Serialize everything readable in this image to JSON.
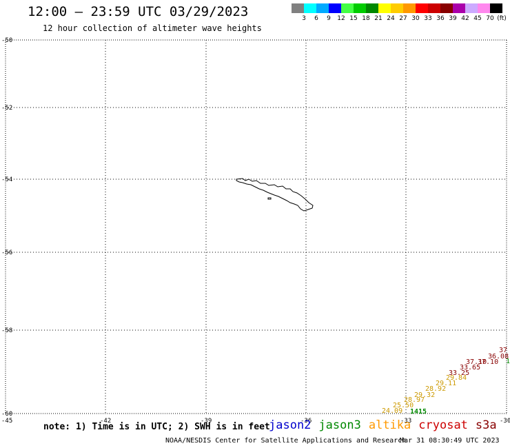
{
  "header": {
    "title": "12:00 – 23:59 UTC 03/29/2023",
    "subtitle": "12 hour collection of altimeter wave heights"
  },
  "legend": {
    "unit": "(ft)",
    "swatches": [
      {
        "color": "#808080",
        "label": "3"
      },
      {
        "color": "#00ffff",
        "label": "6"
      },
      {
        "color": "#00aaff",
        "label": "9"
      },
      {
        "color": "#0000ff",
        "label": "12"
      },
      {
        "color": "#44ff44",
        "label": "15"
      },
      {
        "color": "#00cc00",
        "label": "18"
      },
      {
        "color": "#008800",
        "label": "21"
      },
      {
        "color": "#ffff00",
        "label": "24"
      },
      {
        "color": "#ffcc00",
        "label": "27"
      },
      {
        "color": "#ff9900",
        "label": "30"
      },
      {
        "color": "#ff0000",
        "label": "33"
      },
      {
        "color": "#cc0000",
        "label": "36"
      },
      {
        "color": "#880000",
        "label": "39"
      },
      {
        "color": "#aa00aa",
        "label": "42"
      },
      {
        "color": "#ccaaff",
        "label": "45"
      },
      {
        "color": "#ff88ee",
        "label": "70"
      },
      {
        "color": "#000000",
        "label": ""
      }
    ]
  },
  "axes": {
    "lon_labels": [
      "-45",
      "-42",
      "-39",
      "-36",
      "-33",
      "-30"
    ],
    "lat_labels": [
      "-50",
      "-52",
      "-54",
      "-56",
      "-58",
      "-60"
    ]
  },
  "observations": [
    {
      "text": "37",
      "color": "#880000"
    },
    {
      "text": "36.08",
      "color": "#880000"
    },
    {
      "text": "37.10",
      "color": "#880000"
    },
    {
      "text": "1",
      "color": "#008800"
    },
    {
      "text": "37.10",
      "color": "#880000"
    },
    {
      "text": "33.65",
      "color": "#880000"
    },
    {
      "text": "33.25",
      "color": "#880000"
    },
    {
      "text": "29.84",
      "color": "#cc9900"
    },
    {
      "text": "29.11",
      "color": "#cc9900"
    },
    {
      "text": "28.92",
      "color": "#cc9900"
    },
    {
      "text": "29.32",
      "color": "#cc9900"
    },
    {
      "text": "28.97",
      "color": "#cc9900"
    },
    {
      "text": "25.50",
      "color": "#cc9900"
    },
    {
      "text": "24.09",
      "color": "#cc9900"
    },
    {
      "text": "1415",
      "color": "#008800"
    }
  ],
  "footer": {
    "note": "note: 1) Time is in UTC; 2) SWH is in feet",
    "satellites": [
      {
        "name": "jason2",
        "color": "#0000cc"
      },
      {
        "name": "jason3",
        "color": "#008800"
      },
      {
        "name": "altika",
        "color": "#ff9900"
      },
      {
        "name": "cryosat",
        "color": "#cc0000"
      },
      {
        "name": "s3a",
        "color": "#880000"
      }
    ],
    "credit": "NOAA/NESDIS Center for Satellite Applications and Research",
    "timestamp": "Mar 31 08:30:49 UTC 2023"
  }
}
